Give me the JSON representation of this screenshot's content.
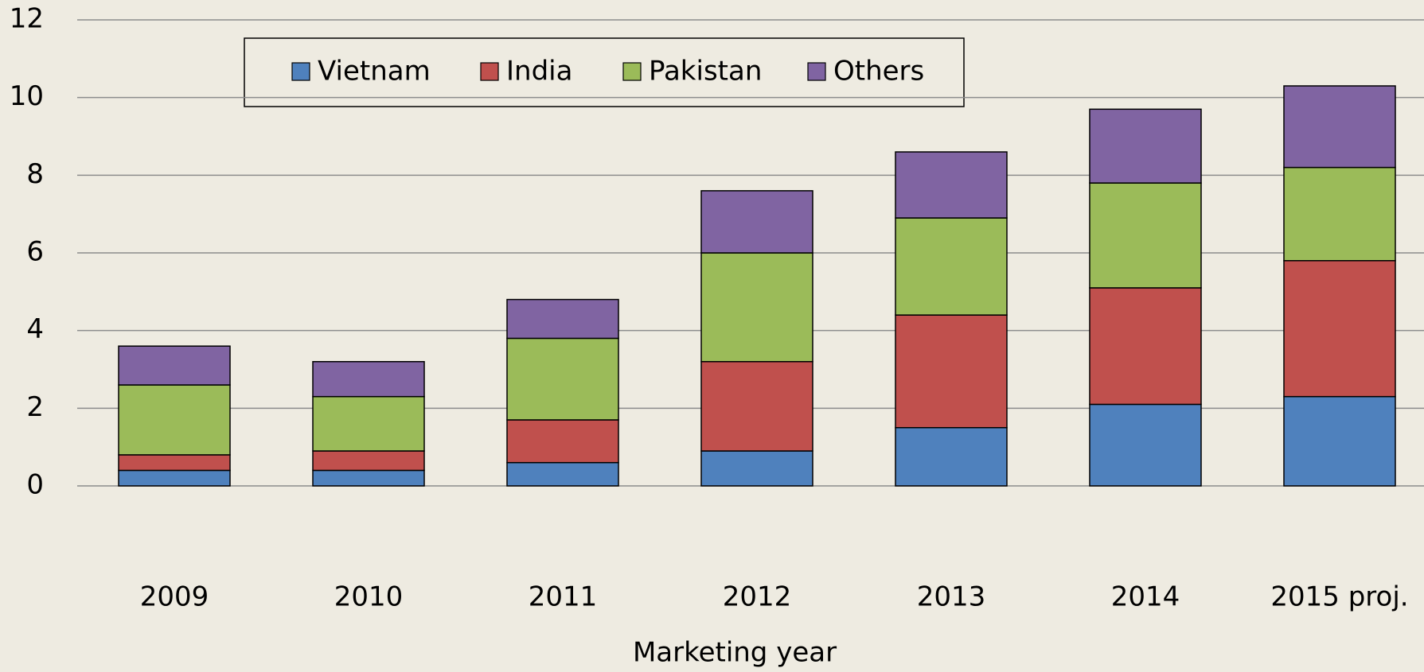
{
  "chart_data": {
    "type": "stacked_bar",
    "x_label": "Marketing year",
    "categories": [
      "2009",
      "2010",
      "2011",
      "2012",
      "2013",
      "2014",
      "2015 proj."
    ],
    "series": [
      {
        "name": "Vietnam",
        "color": "#4f81bd",
        "values": [
          0.4,
          0.4,
          0.6,
          0.9,
          1.5,
          2.1,
          2.3
        ]
      },
      {
        "name": "India",
        "color": "#c0504d",
        "values": [
          0.4,
          0.5,
          1.1,
          2.3,
          2.9,
          3.0,
          3.5
        ]
      },
      {
        "name": "Pakistan",
        "color": "#9bbb59",
        "values": [
          1.8,
          1.4,
          2.1,
          2.8,
          2.5,
          2.7,
          2.4
        ]
      },
      {
        "name": "Others",
        "color": "#8064a2",
        "values": [
          1.0,
          0.9,
          1.0,
          1.6,
          1.7,
          1.9,
          2.1
        ]
      }
    ],
    "ylim": [
      0,
      12
    ],
    "yticks": [
      0,
      2,
      4,
      6,
      8,
      10,
      12
    ],
    "grid": true,
    "legend": "top"
  }
}
